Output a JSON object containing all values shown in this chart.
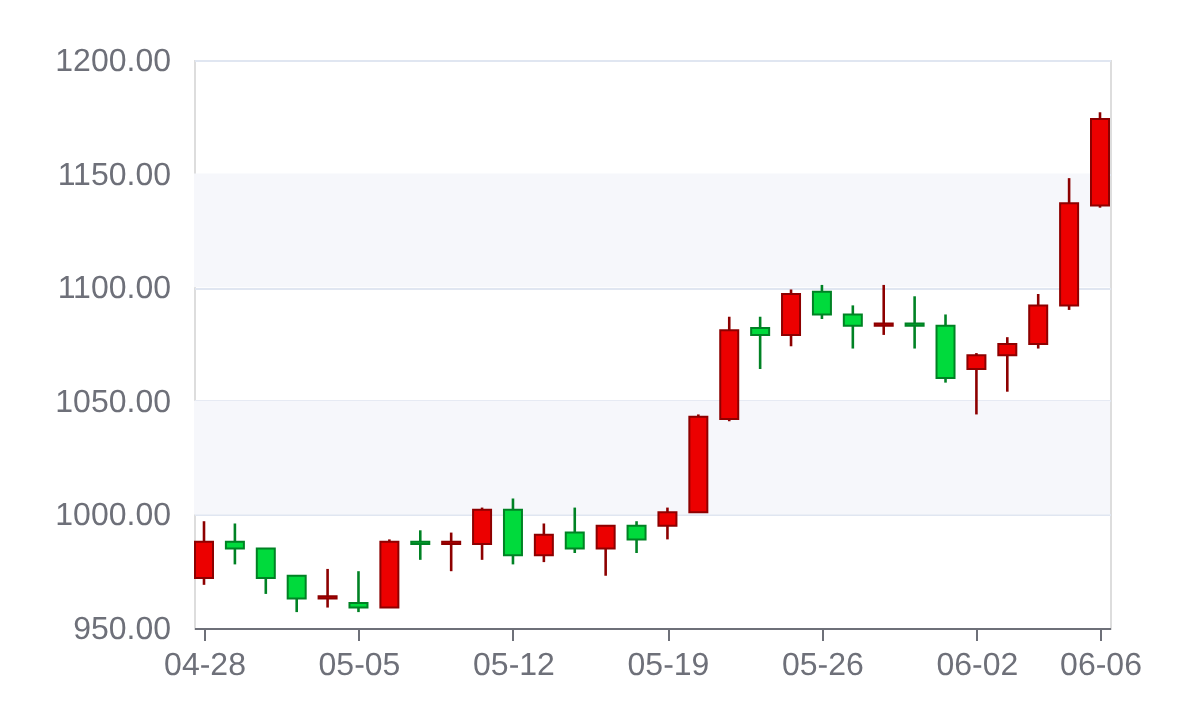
{
  "chart_data": {
    "type": "candlestick",
    "categories": [
      "04-28",
      null,
      null,
      null,
      null,
      "05-05",
      null,
      null,
      null,
      null,
      "05-12",
      null,
      null,
      null,
      null,
      "05-19",
      null,
      null,
      null,
      null,
      "05-26",
      null,
      null,
      null,
      null,
      "06-02",
      null,
      null,
      null,
      "06-06"
    ],
    "ohlc": [
      [
        972,
        997,
        969,
        988
      ],
      [
        988,
        996,
        978,
        985
      ],
      [
        985,
        985,
        965,
        972
      ],
      [
        973,
        973,
        957,
        963
      ],
      [
        963,
        976,
        959,
        964
      ],
      [
        961,
        975,
        957,
        959
      ],
      [
        959,
        989,
        959,
        988
      ],
      [
        988,
        993,
        980,
        987
      ],
      [
        987,
        992,
        975,
        988
      ],
      [
        987,
        1003,
        980,
        1002
      ],
      [
        1002,
        1007,
        978,
        982
      ],
      [
        982,
        996,
        979,
        991
      ],
      [
        992,
        1003,
        983,
        985
      ],
      [
        985,
        995,
        973,
        995
      ],
      [
        995,
        997,
        983,
        989
      ],
      [
        995,
        1003,
        989,
        1001
      ],
      [
        1001,
        1044,
        1001,
        1043
      ],
      [
        1042,
        1087,
        1041,
        1081
      ],
      [
        1082,
        1087,
        1064,
        1079
      ],
      [
        1079,
        1099,
        1074,
        1097
      ],
      [
        1098,
        1101,
        1086,
        1088
      ],
      [
        1088,
        1092,
        1073,
        1083
      ],
      [
        1083,
        1101,
        1079,
        1084
      ],
      [
        1084,
        1096,
        1073,
        1083
      ],
      [
        1083,
        1088,
        1058,
        1060
      ],
      [
        1064,
        1071,
        1044,
        1070
      ],
      [
        1070,
        1078,
        1054,
        1075
      ],
      [
        1075,
        1097,
        1073,
        1092
      ],
      [
        1092,
        1148,
        1090,
        1137
      ],
      [
        1136,
        1177,
        1135,
        1174
      ]
    ],
    "colors": [
      "#ec0000",
      "#00da3c",
      "#00da3c",
      "#00da3c",
      "#ec0000",
      "#00da3c",
      "#ec0000",
      "#00da3c",
      "#ec0000",
      "#ec0000",
      "#00da3c",
      "#ec0000",
      "#00da3c",
      "#ec0000",
      "#00da3c",
      "#ec0000",
      "#ec0000",
      "#ec0000",
      "#00da3c",
      "#ec0000",
      "#00da3c",
      "#00da3c",
      "#ec0000",
      "#00da3c",
      "#00da3c",
      "#ec0000",
      "#ec0000",
      "#ec0000",
      "#ec0000",
      "#ec0000"
    ],
    "ylim": [
      950,
      1200
    ],
    "yticks": [
      {
        "value": 950,
        "label": "950.00"
      },
      {
        "value": 1000,
        "label": "1000.00"
      },
      {
        "value": 1050,
        "label": "1050.00"
      },
      {
        "value": 1100,
        "label": "1100.00"
      },
      {
        "value": 1150,
        "label": "1150.00"
      },
      {
        "value": 1200,
        "label": "1200.00"
      }
    ],
    "bands": [
      {
        "axis": "y",
        "from": 1000,
        "to": 1050,
        "color": "#f6f7fb"
      },
      {
        "axis": "y",
        "from": 1100,
        "to": 1150,
        "color": "#f6f7fb"
      }
    ],
    "grid": "y"
  }
}
